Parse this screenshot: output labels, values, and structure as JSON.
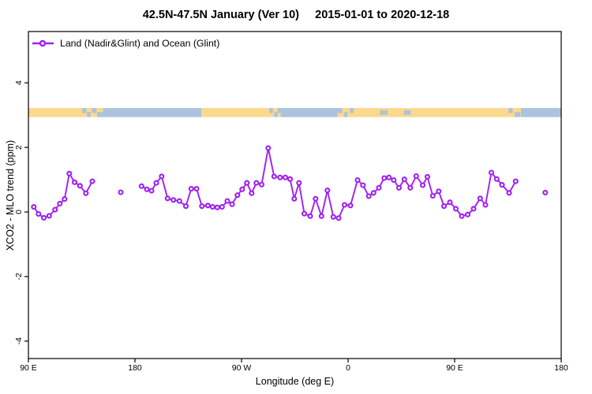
{
  "chart_data": {
    "type": "line",
    "title": "42.5N-47.5N January (Ver 10)     2015-01-01 to 2020-12-18",
    "xlabel": "Longitude (deg E)",
    "ylabel": "XCO2 - MLO trend (ppm)",
    "grid": false,
    "legend_position": "top-left-inside",
    "legend": [
      {
        "label": "Land (Nadir&Glint) and Ocean (Glint)",
        "color": "#A020F0",
        "marker": "open-circle"
      }
    ],
    "x_axis": {
      "min": 90,
      "max": 540,
      "ticks": [
        {
          "v": 90,
          "label": "90 E"
        },
        {
          "v": 180,
          "label": "180"
        },
        {
          "v": 270,
          "label": "90 W"
        },
        {
          "v": 360,
          "label": "0"
        },
        {
          "v": 450,
          "label": "90 E"
        },
        {
          "v": 540,
          "label": "180"
        }
      ]
    },
    "y_axis": {
      "min": -4.54,
      "max": 5.59,
      "ticks": [
        {
          "v": 4,
          "label": "4"
        },
        {
          "v": 2,
          "label": "2"
        },
        {
          "v": 0,
          "label": "0"
        },
        {
          "v": -2,
          "label": "-2"
        },
        {
          "v": -4,
          "label": "-4"
        }
      ]
    },
    "series": [
      {
        "name": "Land (Nadir&Glint) and Ocean (Glint)",
        "color": "#A020F0",
        "marker": "open-circle",
        "line_segments": [
          [
            [
              94.5,
              0.16
            ],
            [
              98.5,
              -0.06
            ],
            [
              103,
              -0.18
            ],
            [
              107.5,
              -0.12
            ],
            [
              112.5,
              0.07
            ],
            [
              116.5,
              0.26
            ],
            [
              120.5,
              0.4
            ],
            [
              124.5,
              1.19
            ],
            [
              129,
              0.92
            ],
            [
              133.5,
              0.81
            ],
            [
              138.5,
              0.58
            ],
            [
              144,
              0.95
            ]
          ],
          [
            [
              168,
              0.61
            ]
          ],
          [
            [
              185.5,
              0.8
            ],
            [
              190,
              0.7
            ],
            [
              194,
              0.66
            ],
            [
              198,
              0.9
            ],
            [
              202.5,
              1.1
            ],
            [
              207.5,
              0.42
            ],
            [
              212.5,
              0.37
            ],
            [
              217.5,
              0.34
            ],
            [
              223,
              0.18
            ],
            [
              227.5,
              0.72
            ],
            [
              232,
              0.72
            ],
            [
              236.5,
              0.18
            ],
            [
              241.5,
              0.2
            ],
            [
              245.5,
              0.16
            ],
            [
              249.5,
              0.14
            ],
            [
              253.5,
              0.16
            ],
            [
              258,
              0.34
            ],
            [
              262,
              0.24
            ],
            [
              266.5,
              0.52
            ],
            [
              270.5,
              0.7
            ],
            [
              274.5,
              0.9
            ],
            [
              278.5,
              0.58
            ],
            [
              282.5,
              0.9
            ],
            [
              287,
              0.85
            ],
            [
              292.5,
              1.98
            ],
            [
              297.5,
              1.1
            ],
            [
              302.5,
              1.07
            ],
            [
              307,
              1.07
            ],
            [
              311,
              1.02
            ],
            [
              314.5,
              0.41
            ],
            [
              318.5,
              0.9
            ],
            [
              323,
              -0.05
            ],
            [
              328,
              -0.13
            ],
            [
              332.5,
              0.41
            ],
            [
              337.5,
              -0.13
            ],
            [
              342.5,
              0.67
            ],
            [
              347.5,
              -0.15
            ],
            [
              352,
              -0.19
            ],
            [
              357,
              0.22
            ],
            [
              362,
              0.2
            ],
            [
              368,
              0.99
            ],
            [
              372.5,
              0.83
            ],
            [
              377.5,
              0.49
            ],
            [
              381.5,
              0.59
            ],
            [
              386,
              0.75
            ],
            [
              390.5,
              1.05
            ],
            [
              394.5,
              1.07
            ],
            [
              398.5,
              0.99
            ],
            [
              403,
              0.75
            ],
            [
              407.5,
              1.01
            ],
            [
              412.5,
              0.75
            ],
            [
              417.5,
              1.11
            ],
            [
              423,
              0.83
            ],
            [
              427,
              1.09
            ],
            [
              431.5,
              0.5
            ],
            [
              436.5,
              0.64
            ],
            [
              441,
              0.18
            ],
            [
              446,
              0.3
            ],
            [
              451,
              0.1
            ],
            [
              456,
              -0.13
            ],
            [
              461,
              -0.08
            ],
            [
              466,
              0.1
            ],
            [
              471.5,
              0.42
            ],
            [
              476,
              0.22
            ],
            [
              481,
              1.22
            ],
            [
              485.5,
              1.02
            ],
            [
              490,
              0.84
            ],
            [
              496,
              0.59
            ],
            [
              501.5,
              0.95
            ]
          ],
          [
            [
              526.5,
              0.6
            ]
          ]
        ]
      }
    ],
    "map_band": {
      "y_top": 3.22,
      "y_bottom": 2.94,
      "land_color": "#FAD98C",
      "ocean_color": "#ADC2DE",
      "segments": [
        {
          "from": 90,
          "to": 135,
          "surface": "land"
        },
        {
          "from": 135,
          "to": 153,
          "surface": "land"
        },
        {
          "from": 153,
          "to": 236,
          "surface": "ocean"
        },
        {
          "from": 236,
          "to": 293,
          "surface": "land"
        },
        {
          "from": 293,
          "to": 303,
          "surface": "land"
        },
        {
          "from": 303,
          "to": 351,
          "surface": "ocean"
        },
        {
          "from": 351,
          "to": 373,
          "surface": "land"
        },
        {
          "from": 373,
          "to": 495,
          "surface": "land"
        },
        {
          "from": 495,
          "to": 506,
          "surface": "land"
        },
        {
          "from": 506,
          "to": 540,
          "surface": "ocean"
        }
      ],
      "patches": [
        {
          "from": 135.5,
          "to": 139,
          "surface": "ocean",
          "pos": "top"
        },
        {
          "from": 139.5,
          "to": 142.5,
          "surface": "ocean",
          "pos": "bottom"
        },
        {
          "from": 143.5,
          "to": 147.5,
          "surface": "ocean",
          "pos": "top"
        },
        {
          "from": 148,
          "to": 153,
          "surface": "ocean",
          "pos": "bottom"
        },
        {
          "from": 293.5,
          "to": 296.5,
          "surface": "ocean",
          "pos": "top"
        },
        {
          "from": 297.5,
          "to": 300.5,
          "surface": "ocean",
          "pos": "bottom"
        },
        {
          "from": 300.5,
          "to": 303,
          "surface": "ocean",
          "pos": "top"
        },
        {
          "from": 351,
          "to": 355,
          "surface": "ocean",
          "pos": "top"
        },
        {
          "from": 356.5,
          "to": 359.5,
          "surface": "ocean",
          "pos": "bottom"
        },
        {
          "from": 361.5,
          "to": 364.5,
          "surface": "ocean",
          "pos": "top"
        },
        {
          "from": 387,
          "to": 393.5,
          "surface": "ocean",
          "pos": "mid"
        },
        {
          "from": 407,
          "to": 413,
          "surface": "ocean",
          "pos": "mid"
        },
        {
          "from": 495.5,
          "to": 499,
          "surface": "ocean",
          "pos": "top"
        },
        {
          "from": 500.5,
          "to": 505.5,
          "surface": "ocean",
          "pos": "bottom"
        }
      ]
    }
  }
}
